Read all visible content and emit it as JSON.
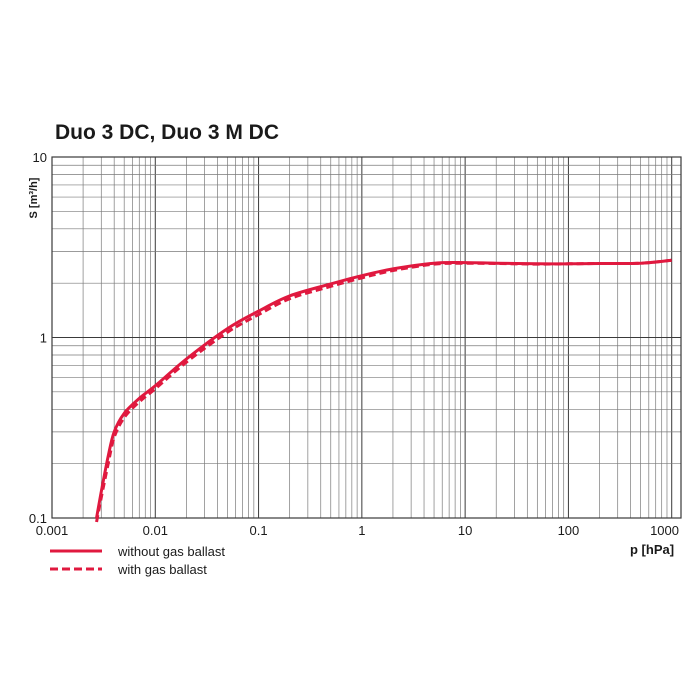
{
  "colors": {
    "series": "#e0193f",
    "grid_major": "#3a3a3a",
    "grid_minor": "#7a7a7a",
    "text": "#1a1a1a"
  },
  "chart_data": {
    "type": "line",
    "title": "Duo 3 DC, Duo 3 M DC",
    "xlabel": "p [hPa]",
    "ylabel": "S [m³/h]",
    "xscale": "log",
    "yscale": "log",
    "xlim": [
      0.001,
      1000
    ],
    "ylim": [
      0.1,
      10
    ],
    "x_ticks": [
      "0.001",
      "0.01",
      "0.1",
      "1",
      "10",
      "100",
      "1000"
    ],
    "y_ticks": [
      "0.1",
      "1",
      "10"
    ],
    "grid": true,
    "legend_position": "bottom-left",
    "series": [
      {
        "name": "without gas ballast",
        "style": "solid",
        "x": [
          0.0027,
          0.003,
          0.0035,
          0.004,
          0.005,
          0.007,
          0.01,
          0.02,
          0.05,
          0.1,
          0.2,
          0.5,
          1,
          2,
          5,
          10,
          20,
          50,
          100,
          200,
          500,
          1000
        ],
        "y": [
          0.1,
          0.14,
          0.22,
          0.3,
          0.38,
          0.46,
          0.54,
          0.76,
          1.12,
          1.4,
          1.7,
          1.98,
          2.2,
          2.4,
          2.58,
          2.6,
          2.58,
          2.56,
          2.56,
          2.57,
          2.58,
          2.68
        ]
      },
      {
        "name": "with gas ballast",
        "style": "dashed",
        "x": [
          0.0027,
          0.003,
          0.0035,
          0.004,
          0.005,
          0.007,
          0.01,
          0.02,
          0.05,
          0.1,
          0.2,
          0.5,
          1,
          2,
          5,
          10,
          20,
          50,
          100,
          200,
          500,
          1000
        ],
        "y": [
          0.095,
          0.13,
          0.2,
          0.28,
          0.36,
          0.44,
          0.52,
          0.73,
          1.07,
          1.34,
          1.64,
          1.92,
          2.14,
          2.35,
          2.55,
          2.58,
          2.57,
          2.55,
          2.56,
          2.57,
          2.58,
          2.68
        ]
      }
    ]
  }
}
